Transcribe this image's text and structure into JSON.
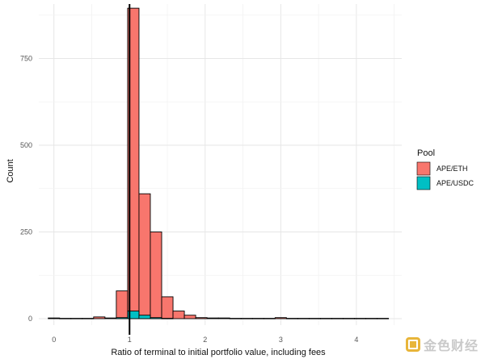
{
  "chart_data": {
    "type": "histogram",
    "title": "",
    "xlabel": "Ratio of terminal to initial portfolio value, including fees",
    "ylabel": "Count",
    "xlim": [
      -0.2,
      4.6
    ],
    "ylim": [
      0,
      900
    ],
    "x_ticks": [
      0,
      1,
      2,
      3,
      4
    ],
    "x_tick_labels": [
      "0",
      "1",
      "2",
      "3",
      "4"
    ],
    "y_ticks": [
      0,
      250,
      500,
      750
    ],
    "y_tick_labels": [
      "0",
      "250",
      "500",
      "750"
    ],
    "bin_width": 0.15,
    "vline_x": 1,
    "legend_title": "Pool",
    "series": [
      {
        "name": "APE/ETH",
        "color": "#F8766D",
        "bin_starts": [
          -0.075,
          0.075,
          0.225,
          0.375,
          0.525,
          0.675,
          0.825,
          0.975,
          1.125,
          1.275,
          1.425,
          1.575,
          1.725,
          1.875,
          2.025,
          2.175,
          2.325,
          2.475,
          2.625,
          2.775,
          2.925,
          3.075,
          3.225,
          3.375,
          3.525,
          3.675,
          3.825,
          3.975,
          4.125,
          4.275
        ],
        "values": [
          2,
          1,
          1,
          1,
          5,
          2,
          80,
          895,
          360,
          250,
          63,
          22,
          10,
          3,
          2,
          2,
          1,
          1,
          1,
          1,
          3,
          1,
          1,
          1,
          1,
          1,
          1,
          1,
          1,
          1
        ]
      },
      {
        "name": "APE/USDC",
        "color": "#00BFC4",
        "bin_starts": [
          0.825,
          0.975,
          1.125,
          1.275,
          1.425
        ],
        "values": [
          3,
          22,
          10,
          3,
          1
        ]
      }
    ]
  },
  "watermark": {
    "text": "金色财经"
  }
}
